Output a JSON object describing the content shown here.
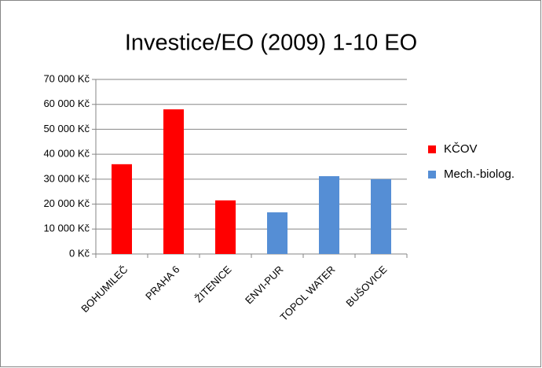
{
  "chart_data": {
    "type": "bar",
    "title": "Investice/EO (2009) 1-10 EO",
    "categories": [
      "BOHUMILEČ",
      "PRAHA 6",
      "ŽITENICE",
      "ENVI-PUR",
      "TOPOL WATER",
      "BUŠOVICE"
    ],
    "series": [
      {
        "name": "KČOV",
        "color": "#ff0000",
        "values": [
          36000,
          58000,
          21500,
          null,
          null,
          null
        ]
      },
      {
        "name": "Mech.-biolog.",
        "color": "#558ed5",
        "values": [
          null,
          null,
          null,
          16700,
          31200,
          30000
        ]
      }
    ],
    "ylim": [
      0,
      70000
    ],
    "yticks": [
      {
        "value": 0,
        "label": "0 Kč"
      },
      {
        "value": 10000,
        "label": "10 000 Kč"
      },
      {
        "value": 20000,
        "label": "20 000 Kč"
      },
      {
        "value": 30000,
        "label": "30 000 Kč"
      },
      {
        "value": 40000,
        "label": "40 000 Kč"
      },
      {
        "value": 50000,
        "label": "50 000 Kč"
      },
      {
        "value": 60000,
        "label": "60 000 Kč"
      },
      {
        "value": 70000,
        "label": "70 000 Kč"
      }
    ],
    "grid": true,
    "legend": "right"
  }
}
